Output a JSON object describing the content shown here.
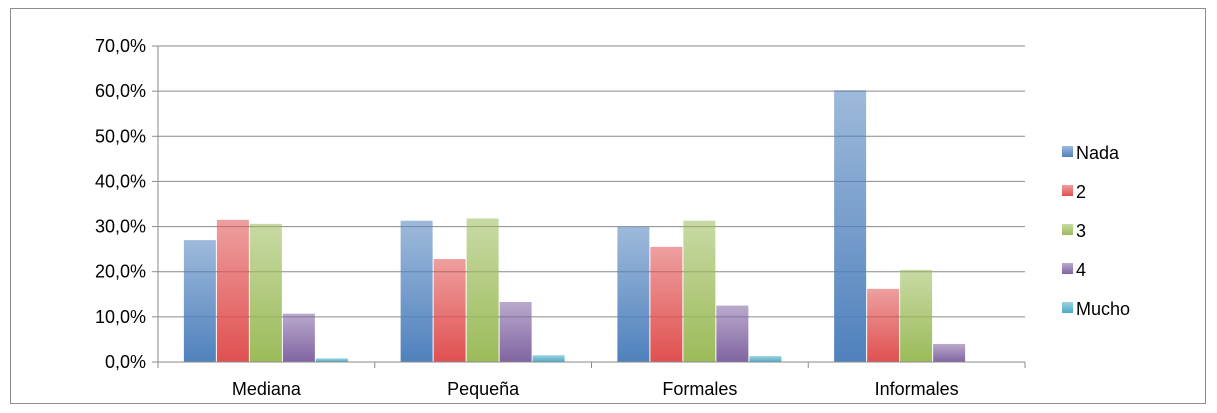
{
  "chart_data": {
    "type": "bar",
    "categories": [
      "Mediana",
      "Pequeña",
      "Formales",
      "Informales"
    ],
    "series": [
      {
        "name": "Nada",
        "values": [
          27.0,
          31.3,
          30.0,
          60.2
        ],
        "color": "#4f81bd"
      },
      {
        "name": "2",
        "values": [
          31.5,
          22.8,
          25.5,
          16.2
        ],
        "color": "#e05050"
      },
      {
        "name": "3",
        "values": [
          30.6,
          31.8,
          31.3,
          20.4
        ],
        "color": "#9bbb59"
      },
      {
        "name": "4",
        "values": [
          10.7,
          13.3,
          12.5,
          4.0
        ],
        "color": "#8064a2"
      },
      {
        "name": "Mucho",
        "values": [
          0.8,
          1.5,
          1.3,
          0.0
        ],
        "color": "#4bacc6"
      }
    ],
    "yticks": [
      "0,0%",
      "10,0%",
      "20,0%",
      "30,0%",
      "40,0%",
      "50,0%",
      "60,0%",
      "70,0%"
    ],
    "ylim": [
      0,
      70
    ],
    "grid": true,
    "legend_position": "right"
  }
}
